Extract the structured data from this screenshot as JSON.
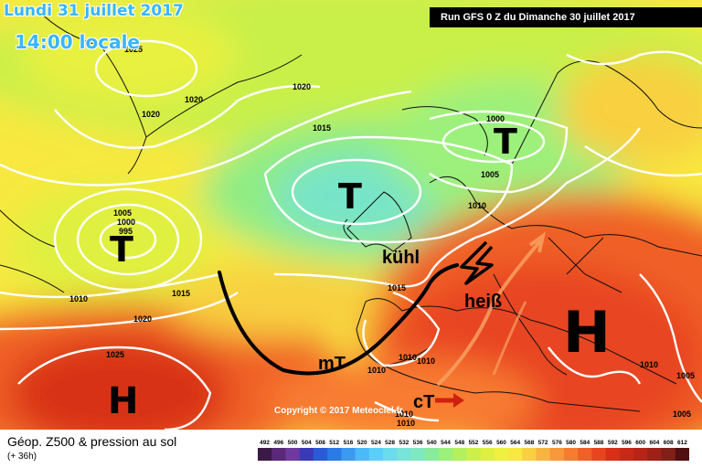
{
  "header": {
    "date": "Lundi 31 juillet 2017",
    "local_time": "14:00 locale",
    "run_info": "Run GFS 0 Z du Dimanche 30 juillet 2017"
  },
  "footer": {
    "product": "Géop. Z500 & pression au sol",
    "forecast_hours": "(+ 36h)",
    "copyright": "Copyright © 2017 Meteociel.fr"
  },
  "pressure_centers": [
    {
      "label": "T",
      "note": "Atlantic low west"
    },
    {
      "label": "T",
      "note": "Atlantic low central"
    },
    {
      "label": "T",
      "note": "Scandinavian low"
    },
    {
      "label": "H",
      "note": "Azores high"
    },
    {
      "label": "H",
      "note": "Mediterranean high"
    }
  ],
  "annotations": {
    "cool": "kühl",
    "hot": "heiß",
    "maritime_tropical": "mT",
    "continental_tropical": "cT"
  },
  "isobar_labels": [
    "1025",
    "1020",
    "1020",
    "1020",
    "1015",
    "1000",
    "1005",
    "1010",
    "1005",
    "1000",
    "995",
    "1010",
    "1015",
    "1020",
    "1015",
    "1025",
    "1010",
    "1010",
    "1010",
    "1010",
    "1010",
    "1005",
    "1005",
    "1010"
  ],
  "color_scale": {
    "ticks": [
      "492",
      "496",
      "500",
      "504",
      "508",
      "512",
      "516",
      "520",
      "524",
      "528",
      "532",
      "536",
      "540",
      "544",
      "548",
      "552",
      "556",
      "560",
      "564",
      "568",
      "572",
      "576",
      "580",
      "584",
      "588",
      "592",
      "596",
      "600",
      "604",
      "608",
      "612"
    ],
    "colors": [
      "#3c1a48",
      "#5a2a78",
      "#6e3aa0",
      "#3a3ab8",
      "#2a5ad8",
      "#2a7ae8",
      "#3a9af0",
      "#4abaf8",
      "#5ad0f8",
      "#6adcec",
      "#78e4d8",
      "#80e8c0",
      "#88ec9c",
      "#9cf07c",
      "#b4f05c",
      "#ccf048",
      "#e0f040",
      "#f0f040",
      "#f8e840",
      "#f8d040",
      "#f8b440",
      "#f89838",
      "#f87c30",
      "#f06028",
      "#e84420",
      "#d83018",
      "#c82818",
      "#b82418",
      "#a02018",
      "#802018",
      "#501010"
    ]
  }
}
